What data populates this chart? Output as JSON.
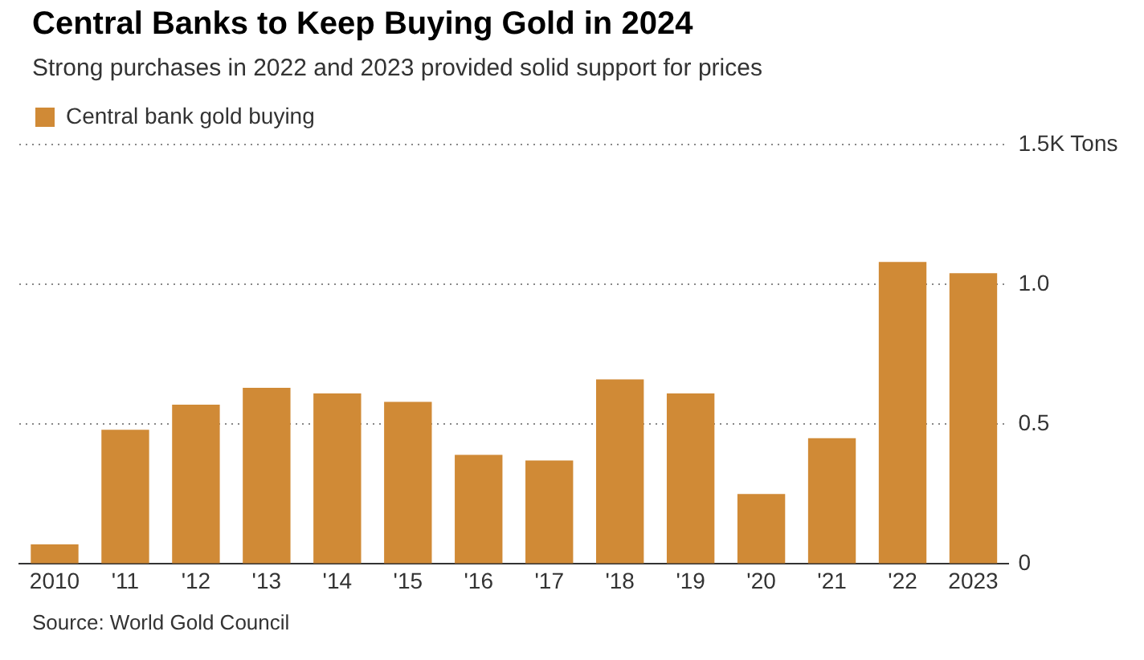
{
  "chart_data": {
    "type": "bar",
    "title": "Central Banks to Keep Buying Gold in 2024",
    "subtitle": "Strong purchases in 2022 and 2023 provided solid support for prices",
    "categories": [
      "2010",
      "'11",
      "'12",
      "'13",
      "'14",
      "'15",
      "'16",
      "'17",
      "'18",
      "'19",
      "'20",
      "'21",
      "'22",
      "2023"
    ],
    "series": [
      {
        "name": "Central bank gold buying",
        "color": "#d08a36",
        "values": [
          0.07,
          0.48,
          0.57,
          0.63,
          0.61,
          0.58,
          0.39,
          0.37,
          0.66,
          0.61,
          0.25,
          0.45,
          1.08,
          1.04
        ]
      }
    ],
    "ylim": [
      0,
      1.5
    ],
    "yticks": [
      0,
      0.5,
      {
        "value": 1,
        "label": "1.0"
      },
      {
        "value": 1.5,
        "label": "1.5K Tons"
      }
    ],
    "grid": "y",
    "legend": "top left",
    "annotations": [
      "Source: World Gold Council"
    ]
  }
}
